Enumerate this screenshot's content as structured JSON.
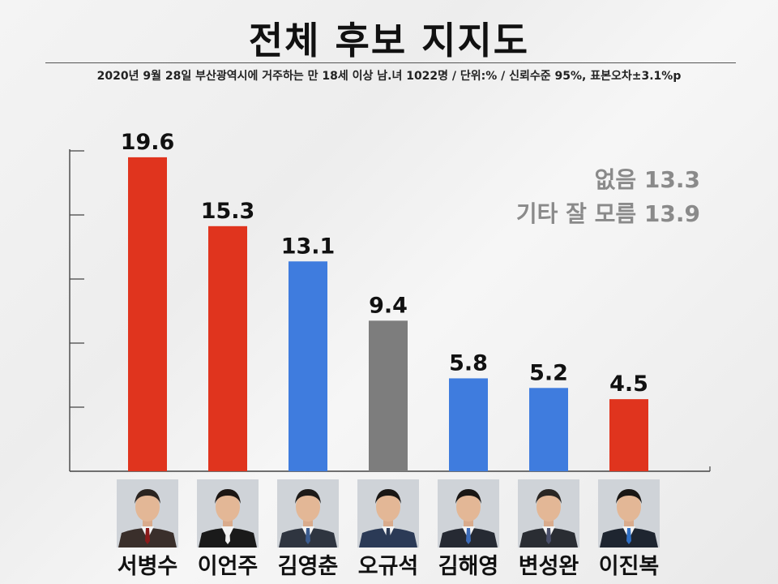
{
  "page": {
    "title": "전체 후보 지지도",
    "subtitle": "2020년 9월 28일  부산광역시에 거주하는 만 18세 이상 남.녀 1022명 / 단위:% / 신뢰수준 95%, 표본오차±3.1%p",
    "notes": [
      "없음 13.3",
      "기타 잘 모름 13.9"
    ]
  },
  "colors": {
    "red": "#e0341e",
    "blue": "#3f7cde",
    "gray": "#7d7d7d",
    "axis": "#444444"
  },
  "chart_data": {
    "type": "bar",
    "categories": [
      "서병수",
      "이언주",
      "김영춘",
      "오규석",
      "김해영",
      "변성완",
      "이진복"
    ],
    "values": [
      19.6,
      15.3,
      13.1,
      9.4,
      5.8,
      5.2,
      4.5
    ],
    "value_labels": [
      "19.6",
      "15.3",
      "13.1",
      "9.4",
      "5.8",
      "5.2",
      "4.5"
    ],
    "bar_colors": [
      "#e0341e",
      "#e0341e",
      "#3f7cde",
      "#7d7d7d",
      "#3f7cde",
      "#3f7cde",
      "#e0341e"
    ],
    "ylim": [
      0,
      20
    ],
    "ytick_values": [
      4,
      8,
      12,
      16
    ],
    "tick_labels_shown": false,
    "grid": false,
    "title": "전체 후보 지지도",
    "xlabel": "",
    "ylabel": ""
  },
  "candidates": [
    {
      "name": "서병수",
      "photo": "portrait-photo",
      "suit": "#3a2f2b",
      "tie": "#8a1a1a",
      "hair": "#2b2420"
    },
    {
      "name": "이언주",
      "photo": "portrait-photo",
      "suit": "#1a1a1a",
      "tie": "#f2f2f2",
      "hair": "#1c1613"
    },
    {
      "name": "김영춘",
      "photo": "portrait-photo",
      "suit": "#2f3540",
      "tie": "#3b5c8f",
      "hair": "#1d1a18"
    },
    {
      "name": "오규석",
      "photo": "portrait-photo",
      "suit": "#2b3a56",
      "tie": "#2b3a56",
      "hair": "#1a1715"
    },
    {
      "name": "김해영",
      "photo": "portrait-photo",
      "suit": "#262a33",
      "tie": "#3c6bb8",
      "hair": "#1a1715"
    },
    {
      "name": "변성완",
      "photo": "portrait-photo",
      "suit": "#2a2d33",
      "tie": "#4a4f6a",
      "hair": "#2a2623"
    },
    {
      "name": "이진복",
      "photo": "portrait-photo",
      "suit": "#1e2530",
      "tie": "#2f6fc4",
      "hair": "#1a1715"
    }
  ]
}
